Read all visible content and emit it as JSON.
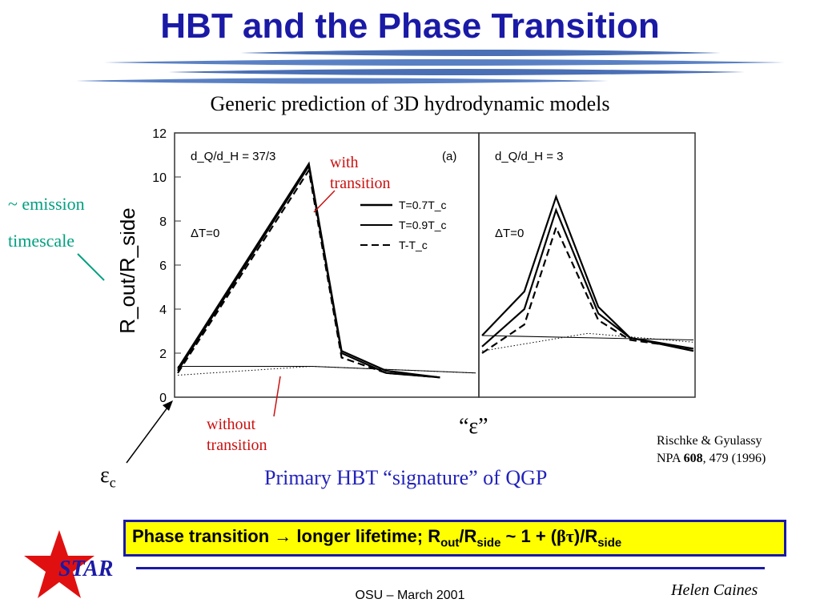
{
  "title": "HBT and the Phase Transition",
  "subtitle": "Generic prediction of 3D hydrodynamic models",
  "annotations": {
    "with_1": "with",
    "with_2": "transition",
    "without_1": "without",
    "without_2": "transition",
    "emission_1": "~ emission",
    "emission_2": "timescale",
    "eps_c": "ε",
    "eps_c_sub": "c",
    "eps_mid": "“ε”",
    "primary": "Primary HBT “signature” of QGP"
  },
  "reference": {
    "line1": "Rischke & Gyulassy",
    "prefix": "NPA ",
    "volume": "608",
    "suffix": ", 479 (1996)"
  },
  "highlight": {
    "p1": "Phase transition ",
    "arrow": "→",
    "p2": " longer lifetime; R",
    "s1": "out",
    "p3": "/R",
    "s2": "side",
    "p4": " ~ 1 + (",
    "bt": "βτ",
    "p5": ")/R",
    "s3": "side"
  },
  "footer": {
    "logo": "STAR",
    "center": "OSU – March 2001",
    "author": "Helen Caines"
  },
  "colors": {
    "title": "#1a1aa6",
    "red": "#cc1111",
    "teal": "#00a080",
    "box": "#ffff00"
  },
  "chart_data": {
    "type": "line",
    "ylabel": "R_out/R_side",
    "yticks": [
      0,
      2,
      4,
      6,
      8,
      10,
      12
    ],
    "ylim": [
      0,
      12
    ],
    "panels": [
      {
        "id": "a",
        "tag": "(a)",
        "label": "d_Q/d_H = 37/3",
        "dT": "ΔT=0",
        "legend": [
          "T=0.7T_c",
          "T=0.9T_c",
          "T-T_c"
        ],
        "series": [
          {
            "name": "T=0.7T_c",
            "style": "solid",
            "x": [
              0.0,
              0.44,
              0.55,
              0.7,
              0.88
            ],
            "y": [
              1.3,
              10.6,
              2.1,
              1.2,
              0.9
            ]
          },
          {
            "name": "T=0.9T_c",
            "style": "solid",
            "x": [
              0.0,
              0.44,
              0.55,
              0.7,
              0.88
            ],
            "y": [
              1.2,
              10.5,
              2.0,
              1.1,
              0.9
            ]
          },
          {
            "name": "T-T_c",
            "style": "dash",
            "x": [
              0.0,
              0.44,
              0.55,
              0.7,
              0.88
            ],
            "y": [
              1.1,
              10.3,
              1.8,
              1.1,
              0.9
            ]
          },
          {
            "name": "",
            "style": "thin",
            "x": [
              0.0,
              0.45,
              1.0
            ],
            "y": [
              1.4,
              1.4,
              1.1
            ]
          },
          {
            "name": "",
            "style": "dot",
            "x": [
              0.0,
              0.45,
              1.0
            ],
            "y": [
              1.0,
              1.4,
              1.1
            ]
          }
        ]
      },
      {
        "id": "b",
        "tag": "",
        "label": "d_Q/d_H = 3",
        "dT": "ΔT=0",
        "legend": [],
        "series": [
          {
            "name": "",
            "style": "solid",
            "x": [
              0.0,
              0.2,
              0.35,
              0.55,
              0.7,
              1.0
            ],
            "y": [
              2.8,
              4.8,
              9.1,
              4.1,
              2.7,
              2.1
            ]
          },
          {
            "name": "",
            "style": "solid",
            "x": [
              0.0,
              0.2,
              0.35,
              0.55,
              0.7,
              1.0
            ],
            "y": [
              2.3,
              4.0,
              8.5,
              3.8,
              2.7,
              2.2
            ]
          },
          {
            "name": "",
            "style": "dash",
            "x": [
              0.0,
              0.2,
              0.35,
              0.55,
              0.7,
              1.0
            ],
            "y": [
              2.0,
              3.3,
              7.7,
              3.5,
              2.6,
              2.2
            ]
          },
          {
            "name": "",
            "style": "thin",
            "x": [
              0.0,
              1.0
            ],
            "y": [
              2.8,
              2.6
            ]
          },
          {
            "name": "",
            "style": "dot",
            "x": [
              0.0,
              0.5,
              1.0
            ],
            "y": [
              2.1,
              2.9,
              2.5
            ]
          }
        ]
      }
    ]
  }
}
